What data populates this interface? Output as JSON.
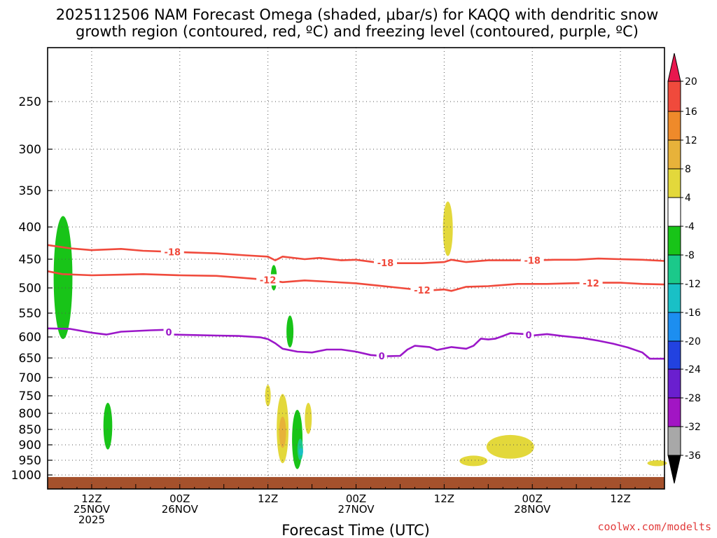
{
  "chart_data": {
    "type": "time-height cross section",
    "title_lines": [
      "2025112506 NAM Forecast Omega (shaded, μbar/s) for KAQQ with dendritic snow",
      "growth region (contoured, red, ºC) and freezing level (contoured, purple, ºC)"
    ],
    "xlabel": "Forecast Time (UTC)",
    "credit": "coolwx.com/modelts",
    "x_range_hours": [
      6,
      90
    ],
    "y_range_hpa": [
      200,
      1025
    ],
    "y_ticks": [
      250,
      300,
      350,
      400,
      450,
      500,
      550,
      600,
      650,
      700,
      750,
      800,
      850,
      900,
      950,
      1000
    ],
    "x_ticks": [
      {
        "hour": 12,
        "labels": [
          "12Z",
          "25NOV",
          "2025"
        ]
      },
      {
        "hour": 24,
        "labels": [
          "00Z",
          "26NOV"
        ]
      },
      {
        "hour": 36,
        "labels": [
          "12Z"
        ]
      },
      {
        "hour": 48,
        "labels": [
          "00Z",
          "27NOV"
        ]
      },
      {
        "hour": 60,
        "labels": [
          "12Z"
        ]
      },
      {
        "hour": 72,
        "labels": [
          "00Z",
          "28NOV"
        ]
      },
      {
        "hour": 84,
        "labels": [
          "12Z"
        ]
      }
    ],
    "colorbar": {
      "labels": [
        "20",
        "16",
        "12",
        "8",
        "4",
        "-4",
        "-8",
        "-12",
        "-16",
        "-20",
        "-24",
        "-28",
        "-32",
        "-36"
      ],
      "colors": [
        "#e8174e",
        "#f04a3c",
        "#ef8a2a",
        "#e7b23a",
        "#e3d83b",
        "#ffffff",
        "#18c418",
        "#1bc98a",
        "#19c0c6",
        "#1c8ef0",
        "#2242e0",
        "#6a1fcf",
        "#a215c4",
        "#a8a8a8",
        "#000000"
      ]
    },
    "contours": [
      {
        "name": "dendritic -18C",
        "label": "-18",
        "color": "#f04a3c",
        "points": [
          [
            6,
            428
          ],
          [
            9,
            433
          ],
          [
            12,
            436
          ],
          [
            16,
            434
          ],
          [
            19,
            437
          ],
          [
            24,
            439
          ],
          [
            29,
            441
          ],
          [
            33,
            444
          ],
          [
            36,
            446
          ],
          [
            37,
            452
          ],
          [
            38,
            446
          ],
          [
            41,
            450
          ],
          [
            43,
            448
          ],
          [
            46,
            452
          ],
          [
            48,
            451
          ],
          [
            51,
            456
          ],
          [
            54,
            457
          ],
          [
            57,
            457
          ],
          [
            60,
            455
          ],
          [
            61,
            451
          ],
          [
            63,
            455
          ],
          [
            66,
            452
          ],
          [
            69,
            452
          ],
          [
            72,
            452
          ],
          [
            75,
            451
          ],
          [
            78,
            451
          ],
          [
            81,
            449
          ],
          [
            84,
            450
          ],
          [
            87,
            451
          ],
          [
            90,
            453
          ]
        ]
      },
      {
        "name": "dendritic -12C",
        "label": "-12",
        "color": "#f04a3c",
        "points": [
          [
            6,
            471
          ],
          [
            8,
            476
          ],
          [
            12,
            478
          ],
          [
            16,
            477
          ],
          [
            19,
            476
          ],
          [
            24,
            478
          ],
          [
            29,
            479
          ],
          [
            32,
            482
          ],
          [
            36,
            486
          ],
          [
            38,
            490
          ],
          [
            41,
            487
          ],
          [
            44,
            489
          ],
          [
            48,
            492
          ],
          [
            51,
            496
          ],
          [
            54,
            500
          ],
          [
            56,
            503
          ],
          [
            58,
            505
          ],
          [
            60,
            503
          ],
          [
            61,
            506
          ],
          [
            63,
            498
          ],
          [
            66,
            497
          ],
          [
            67,
            496
          ],
          [
            70,
            493
          ],
          [
            74,
            493
          ],
          [
            77,
            492
          ],
          [
            81,
            491
          ],
          [
            84,
            491
          ],
          [
            87,
            493
          ],
          [
            90,
            494
          ]
        ]
      },
      {
        "name": "freezing level 0C",
        "label": "0",
        "color": "#9b17c9",
        "points": [
          [
            6,
            582
          ],
          [
            9,
            583
          ],
          [
            12,
            591
          ],
          [
            14,
            595
          ],
          [
            16,
            589
          ],
          [
            20,
            586
          ],
          [
            22,
            585
          ],
          [
            23,
            595
          ],
          [
            26,
            596
          ],
          [
            29,
            597
          ],
          [
            32,
            598
          ],
          [
            35,
            601
          ],
          [
            36,
            605
          ],
          [
            37,
            615
          ],
          [
            38,
            628
          ],
          [
            40,
            635
          ],
          [
            42,
            637
          ],
          [
            44,
            630
          ],
          [
            46,
            630
          ],
          [
            48,
            635
          ],
          [
            50,
            643
          ],
          [
            52,
            646
          ],
          [
            54,
            645
          ],
          [
            55,
            630
          ],
          [
            56,
            621
          ],
          [
            58,
            624
          ],
          [
            59,
            631
          ],
          [
            61,
            624
          ],
          [
            63,
            628
          ],
          [
            64,
            621
          ],
          [
            65,
            604
          ],
          [
            66,
            606
          ],
          [
            67,
            604
          ],
          [
            68,
            598
          ],
          [
            69,
            592
          ],
          [
            71,
            594
          ],
          [
            72,
            597
          ],
          [
            74,
            594
          ],
          [
            76,
            598
          ],
          [
            79,
            603
          ],
          [
            81,
            609
          ],
          [
            83,
            616
          ],
          [
            85,
            625
          ],
          [
            87,
            637
          ],
          [
            88,
            652
          ],
          [
            90,
            652
          ]
        ]
      }
    ],
    "omega_regions": [
      {
        "value_range": [
          -8,
          -4
        ],
        "color": "#18c418",
        "center_hour": 8.1,
        "pressure_range": [
          385,
          605
        ]
      },
      {
        "value_range": [
          -8,
          -4
        ],
        "color": "#18c418",
        "center_hour": 14.2,
        "pressure_range": [
          770,
          915
        ]
      },
      {
        "value_range": [
          -8,
          -4
        ],
        "color": "#18c418",
        "center_hour": 36.8,
        "pressure_range": [
          460,
          505
        ]
      },
      {
        "value_range": [
          -8,
          -4
        ],
        "color": "#18c418",
        "center_hour": 39.0,
        "pressure_range": [
          555,
          625
        ]
      },
      {
        "value_range": [
          -8,
          -4
        ],
        "color": "#18c418",
        "center_hour": 40.0,
        "pressure_range": [
          790,
          980
        ]
      },
      {
        "value_range": [
          -12,
          -8
        ],
        "color": "#1bc98a",
        "center_hour": 40.4,
        "pressure_range": [
          880,
          950
        ]
      },
      {
        "value_range": [
          -16,
          -12
        ],
        "color": "#19c0c6",
        "center_hour": 40.5,
        "pressure_range": [
          910,
          935
        ]
      },
      {
        "value_range": [
          4,
          8
        ],
        "color": "#e3d83b",
        "center_hour": 60.5,
        "pressure_range": [
          365,
          445
        ]
      },
      {
        "value_range": [
          4,
          8
        ],
        "color": "#e3d83b",
        "center_hour": 36.0,
        "pressure_range": [
          720,
          780
        ]
      },
      {
        "value_range": [
          4,
          8
        ],
        "color": "#e3d83b",
        "center_hour": 38.0,
        "pressure_range": [
          745,
          960
        ]
      },
      {
        "value_range": [
          8,
          12
        ],
        "color": "#e7b23a",
        "center_hour": 38.0,
        "pressure_range": [
          810,
          910
        ]
      },
      {
        "value_range": [
          4,
          8
        ],
        "color": "#e3d83b",
        "center_hour": 41.5,
        "pressure_range": [
          770,
          865
        ]
      },
      {
        "value_range": [
          4,
          8
        ],
        "color": "#e3d83b",
        "center_hour": 69.0,
        "pressure_range": [
          868,
          945
        ]
      },
      {
        "value_range": [
          4,
          8
        ],
        "color": "#e3d83b",
        "center_hour": 64.0,
        "pressure_range": [
          935,
          970
        ]
      },
      {
        "value_range": [
          4,
          8
        ],
        "color": "#e3d83b",
        "center_hour": 89.0,
        "pressure_range": [
          950,
          970
        ]
      }
    ],
    "terrain_color": "#a5512c"
  }
}
